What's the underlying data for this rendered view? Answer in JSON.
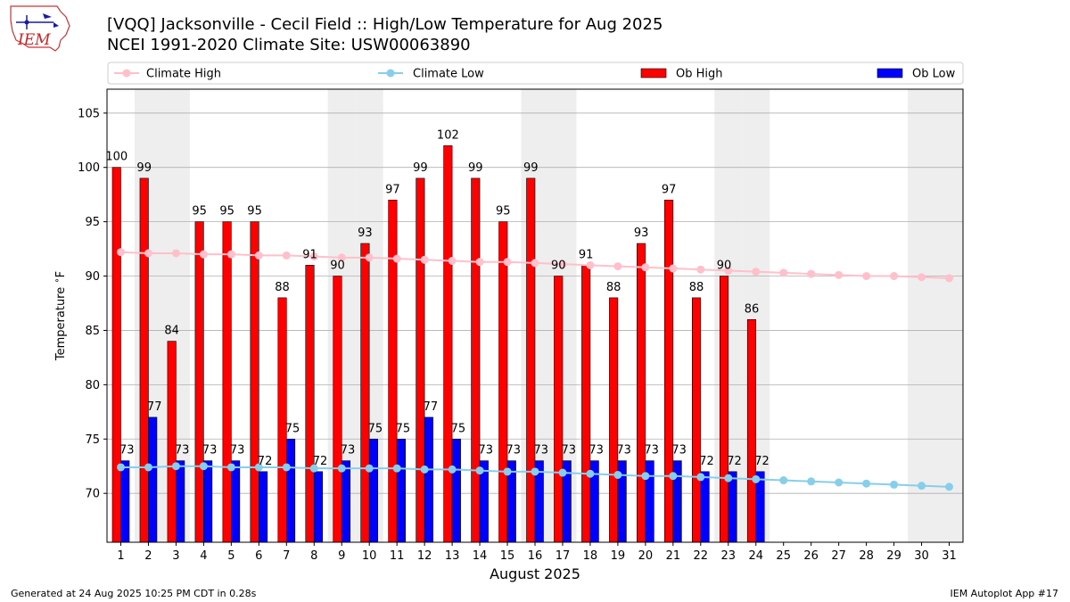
{
  "header": {
    "title_line1": "[VQQ] Jacksonville - Cecil Field :: High/Low Temperature for Aug 2025",
    "title_line2": "NCEI 1991-2020 Climate Site: USW00063890",
    "logo_text": "IEM"
  },
  "footer": {
    "left": "Generated at 24 Aug 2025 10:25 PM CDT in 0.28s",
    "right": "IEM Autoplot App #17"
  },
  "colors": {
    "ob_high": "#ff0000",
    "ob_low": "#0000ff",
    "climate_high": "#ffc0cb",
    "climate_low": "#87ceeb",
    "weekend_band": "#eeeeee"
  },
  "chart_data": {
    "type": "bar",
    "xlabel": "August 2025",
    "ylabel": "Temperature $^\\circ$F",
    "ylim": [
      65.5,
      107.2
    ],
    "yticks": [
      70,
      75,
      80,
      85,
      90,
      95,
      100,
      105
    ],
    "grid": "y",
    "legend_position": "top",
    "days": [
      1,
      2,
      3,
      4,
      5,
      6,
      7,
      8,
      9,
      10,
      11,
      12,
      13,
      14,
      15,
      16,
      17,
      18,
      19,
      20,
      21,
      22,
      23,
      24,
      25,
      26,
      27,
      28,
      29,
      30,
      31
    ],
    "weekend_days": [
      2,
      3,
      9,
      10,
      16,
      17,
      23,
      24,
      30,
      31
    ],
    "series": [
      {
        "name": "Climate High",
        "kind": "line",
        "values": [
          92.2,
          92.1,
          92.1,
          92.0,
          92.0,
          91.9,
          91.9,
          91.8,
          91.7,
          91.7,
          91.6,
          91.5,
          91.4,
          91.3,
          91.3,
          91.2,
          91.1,
          91.0,
          90.9,
          90.8,
          90.7,
          90.6,
          90.5,
          90.4,
          90.3,
          90.2,
          90.1,
          90.0,
          90.0,
          89.9,
          89.8
        ]
      },
      {
        "name": "Climate Low",
        "kind": "line",
        "values": [
          72.4,
          72.4,
          72.5,
          72.5,
          72.4,
          72.4,
          72.4,
          72.3,
          72.3,
          72.3,
          72.3,
          72.2,
          72.2,
          72.1,
          72.0,
          72.0,
          71.9,
          71.8,
          71.7,
          71.6,
          71.6,
          71.5,
          71.4,
          71.3,
          71.2,
          71.1,
          71.0,
          70.9,
          70.8,
          70.7,
          70.6
        ]
      },
      {
        "name": "Ob High",
        "kind": "bar",
        "values": [
          100,
          99,
          84,
          95,
          95,
          95,
          88,
          91,
          90,
          93,
          97,
          99,
          102,
          99,
          95,
          99,
          90,
          91,
          88,
          93,
          97,
          88,
          90,
          86
        ]
      },
      {
        "name": "Ob Low",
        "kind": "bar",
        "values": [
          73,
          77,
          73,
          73,
          73,
          72,
          75,
          72,
          73,
          75,
          75,
          77,
          75,
          73,
          73,
          73,
          73,
          73,
          73,
          73,
          73,
          72,
          72,
          72
        ]
      }
    ]
  }
}
